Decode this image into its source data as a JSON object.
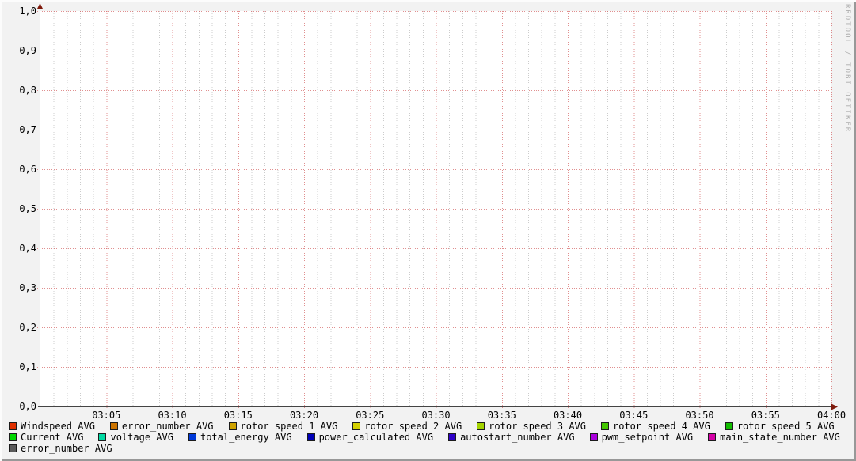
{
  "watermark": "RRDTOOL / TOBI OETIKER",
  "colors": {
    "background": "#f2f2f2",
    "canvas": "#ffffff",
    "major_grid": "#cc4444",
    "minor_grid": "#999999",
    "axis": "#444444",
    "arrow": "#7f1a0c",
    "tick_text": "#000000",
    "watermark_text": "#aeaeae"
  },
  "chart_data": {
    "type": "line",
    "title": "",
    "xlabel": "",
    "ylabel": "",
    "grid": true,
    "legend_position": "bottom",
    "ylim": [
      0,
      1
    ],
    "y_ticks": [
      {
        "value": 0.0,
        "label": "0,0"
      },
      {
        "value": 0.1,
        "label": "0,1"
      },
      {
        "value": 0.2,
        "label": "0,2"
      },
      {
        "value": 0.3,
        "label": "0,3"
      },
      {
        "value": 0.4,
        "label": "0,4"
      },
      {
        "value": 0.5,
        "label": "0,5"
      },
      {
        "value": 0.6,
        "label": "0,6"
      },
      {
        "value": 0.7,
        "label": "0,7"
      },
      {
        "value": 0.8,
        "label": "0,8"
      },
      {
        "value": 0.9,
        "label": "0,9"
      },
      {
        "value": 1.0,
        "label": "1,0"
      }
    ],
    "x_range_minutes": [
      0,
      60
    ],
    "x_minor_step_minutes": 1,
    "x_ticks": [
      {
        "minute": 5,
        "label": "03:05"
      },
      {
        "minute": 10,
        "label": "03:10"
      },
      {
        "minute": 15,
        "label": "03:15"
      },
      {
        "minute": 20,
        "label": "03:20"
      },
      {
        "minute": 25,
        "label": "03:25"
      },
      {
        "minute": 30,
        "label": "03:30"
      },
      {
        "minute": 35,
        "label": "03:35"
      },
      {
        "minute": 40,
        "label": "03:40"
      },
      {
        "minute": 45,
        "label": "03:45"
      },
      {
        "minute": 50,
        "label": "03:50"
      },
      {
        "minute": 55,
        "label": "03:55"
      },
      {
        "minute": 60,
        "label": "04:00"
      }
    ],
    "series": [
      {
        "name": "Windspeed AVG",
        "color": "#e03000",
        "values": []
      },
      {
        "name": "error_number AVG",
        "color": "#ce7500",
        "values": []
      },
      {
        "name": "rotor speed 1 AVG",
        "color": "#cfa300",
        "values": []
      },
      {
        "name": "rotor speed 2 AVG",
        "color": "#d4d000",
        "values": []
      },
      {
        "name": "rotor speed 3 AVG",
        "color": "#a4d400",
        "values": []
      },
      {
        "name": "rotor speed 4 AVG",
        "color": "#44c800",
        "values": []
      },
      {
        "name": "rotor speed 5 AVG",
        "color": "#12bd00",
        "values": []
      },
      {
        "name": "Current AVG",
        "color": "#00d800",
        "values": []
      },
      {
        "name": "voltage AVG",
        "color": "#00d9a2",
        "values": []
      },
      {
        "name": "total_energy AVG",
        "color": "#0038d8",
        "values": []
      },
      {
        "name": "power_calculated AVG",
        "color": "#0000b8",
        "values": []
      },
      {
        "name": "autostart_number AVG",
        "color": "#2e00c8",
        "values": []
      },
      {
        "name": "pwm_setpoint AVG",
        "color": "#aa00dc",
        "values": []
      },
      {
        "name": "main_state_number AVG",
        "color": "#d400a6",
        "values": []
      },
      {
        "name": "error_number AVG",
        "color": "#5a5a5a",
        "values": []
      }
    ]
  },
  "legend": {
    "rows": [
      [
        0,
        1,
        2,
        3,
        4,
        5,
        6
      ],
      [
        7,
        8,
        9,
        10,
        11,
        12,
        13
      ],
      [
        14
      ]
    ]
  }
}
